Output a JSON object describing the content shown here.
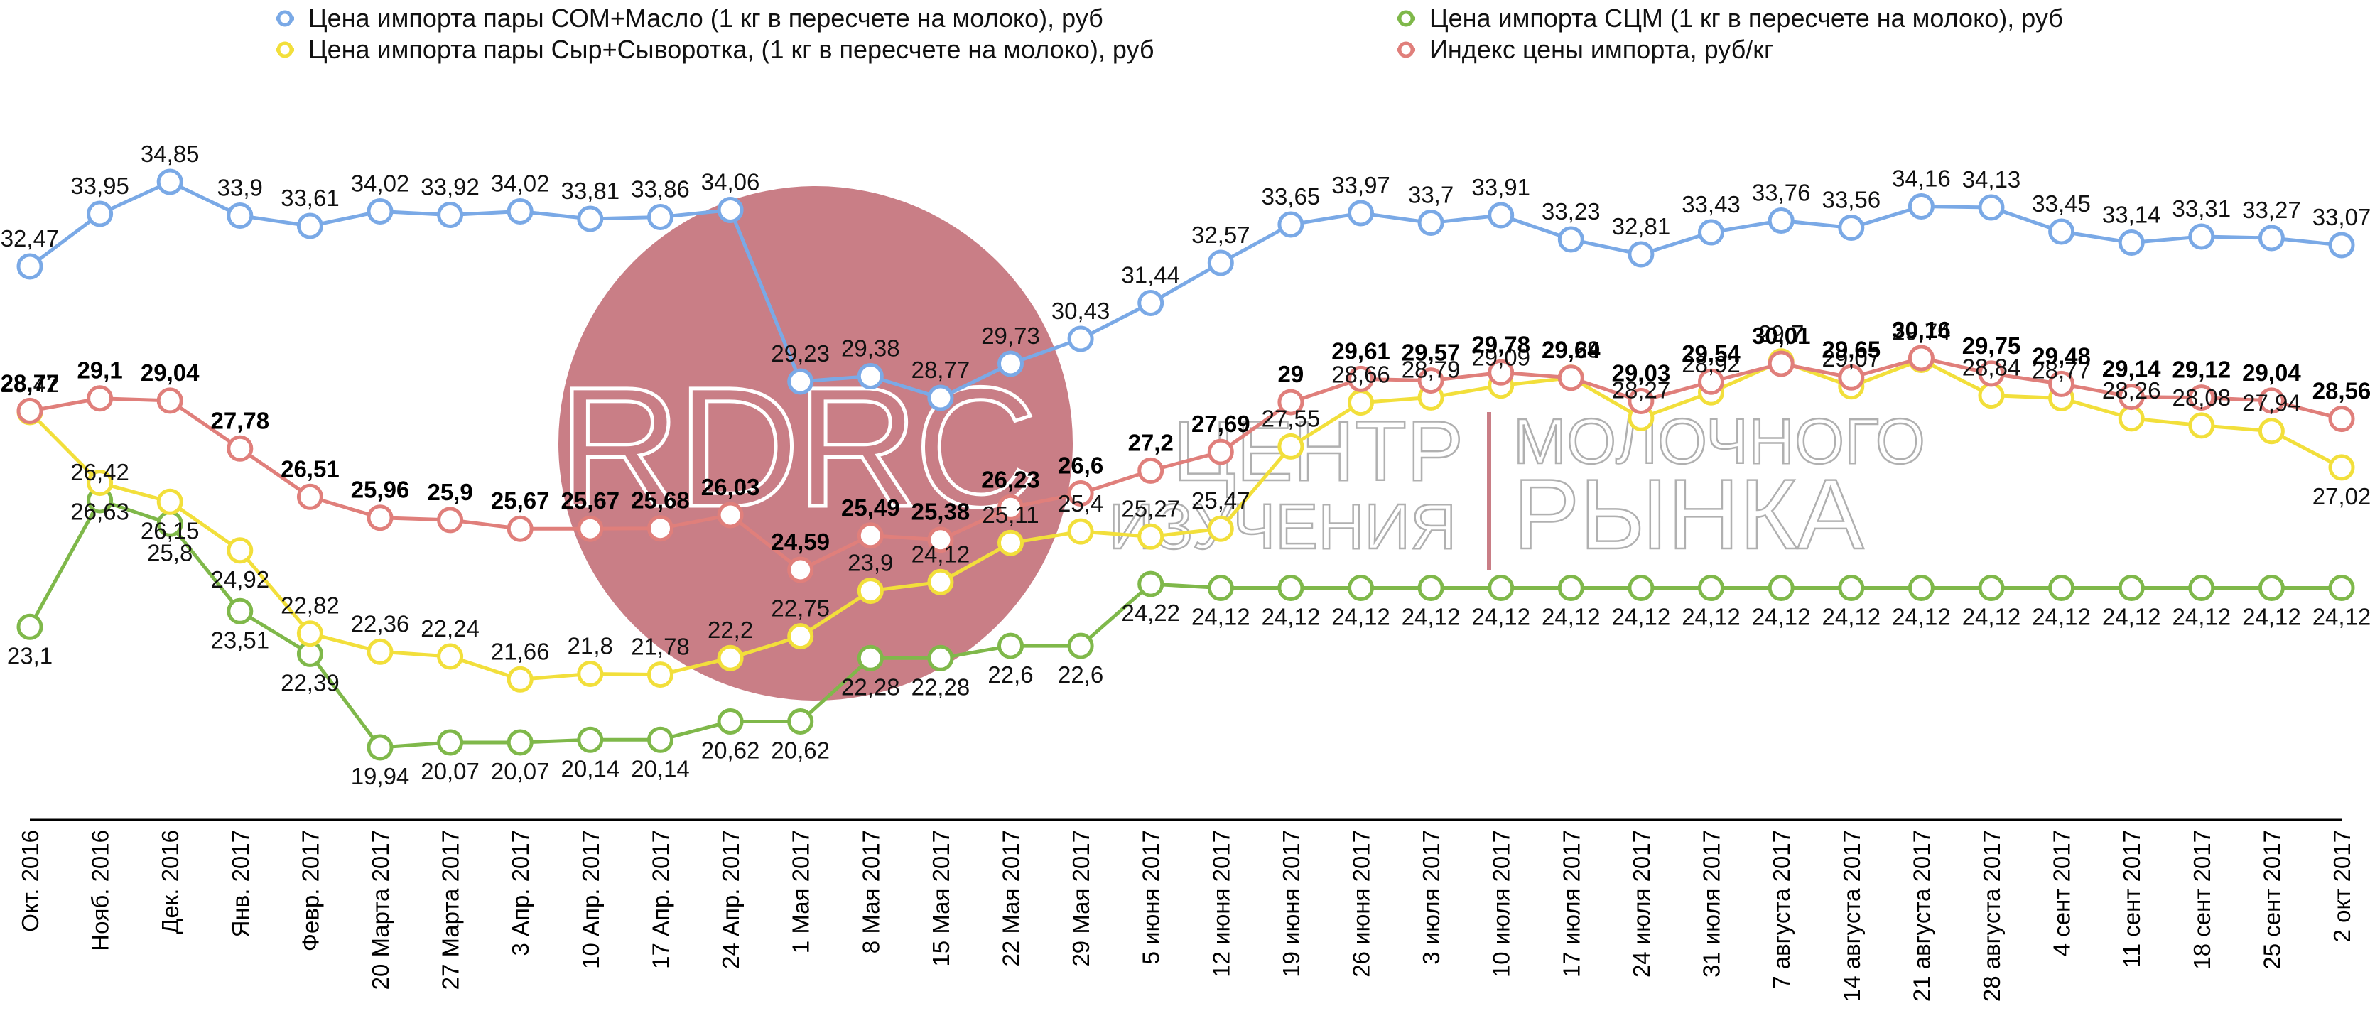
{
  "colors": {
    "blue": "#7aa9e6",
    "yellow": "#f2df3b",
    "green": "#7fb84a",
    "red": "#e07f7b",
    "watermark_circle": "#c97e86",
    "watermark_text": "#b0b0b0",
    "watermark_bar": "#c97e86"
  },
  "watermark": {
    "logo_text": "RDRC",
    "line1a": "ЦЕНТР",
    "line1b": "МОЛОЧНОГО",
    "line2a": "ИЗУЧЕНИЯ",
    "line2b": "РЫНКА"
  },
  "chart_data": {
    "type": "line",
    "categories": [
      "Окт. 2016",
      "Нояб. 2016",
      "Дек. 2016",
      "Янв. 2017",
      "Февр. 2017",
      "20 Марта 2017",
      "27 Марта 2017",
      "3 Апр. 2017",
      "10 Апр. 2017",
      "17 Апр. 2017",
      "24 Апр. 2017",
      "1 Мая 2017",
      "8 Мая 2017",
      "15 Мая 2017",
      "22 Мая 2017",
      "29 Мая 2017",
      "5 июня 2017",
      "12 июня 2017",
      "19 июня 2017",
      "26 июня 2017",
      "3 июля 2017",
      "10 июля 2017",
      "17 июля 2017",
      "24 июля 2017",
      "31 июля 2017",
      "7 августа 2017",
      "14 августа 2017",
      "21 августа 2017",
      "28 августа 2017",
      "4 сент 2017",
      "11 сент 2017",
      "18 сент 2017",
      "25 сент 2017",
      "2 окт 2017"
    ],
    "legend_placement": "top",
    "grid": false,
    "series": [
      {
        "name": "Цена импорта пары СОМ+Масло (1 кг в пересчете на молоко), руб",
        "color": "blue",
        "values": [
          32.47,
          33.95,
          34.85,
          33.9,
          33.61,
          34.02,
          33.92,
          34.02,
          33.81,
          33.86,
          34.06,
          29.23,
          29.38,
          28.77,
          29.73,
          30.43,
          31.44,
          32.57,
          33.65,
          33.97,
          33.7,
          33.91,
          33.23,
          32.81,
          33.43,
          33.76,
          33.56,
          34.16,
          34.13,
          33.45,
          33.14,
          33.31,
          33.27,
          33.07
        ],
        "labels": [
          "32,47",
          "33,95",
          "34,85",
          "33,9",
          "33,61",
          "34,02",
          "33,92",
          "34,02",
          "33,81",
          "33,86",
          "34,06",
          "29,23",
          "29,38",
          "28,77",
          "29,73",
          "30,43",
          "31,44",
          "32,57",
          "33,65",
          "33,97",
          "33,7",
          "33,91",
          "33,23",
          "32,81",
          "33,43",
          "33,76",
          "33,56",
          "34,16",
          "34,13",
          "33,45",
          "33,14",
          "33,31",
          "33,27",
          "33,07"
        ]
      },
      {
        "name": "Цена импорта пары Сыр+Сыворотка, (1 кг в пересчете на молоко), руб",
        "color": "yellow",
        "values": [
          28.42,
          26.63,
          26.15,
          24.92,
          22.82,
          22.36,
          22.24,
          21.66,
          21.8,
          21.78,
          22.2,
          22.75,
          23.9,
          24.12,
          25.11,
          25.4,
          25.27,
          25.47,
          27.55,
          28.66,
          28.79,
          29.09,
          29.29,
          28.27,
          28.92,
          29.7,
          29.07,
          29.74,
          28.84,
          28.77,
          28.26,
          28.08,
          27.94,
          27.02
        ],
        "labels": [
          "28,42",
          "26,63",
          "26,15",
          "24,92",
          "22,82",
          "22,36",
          "22,24",
          "21,66",
          "21,8",
          "21,78",
          "22,2",
          "22,75",
          "23,9",
          "24,12",
          "25,11",
          "25,4",
          "25,27",
          "25,47",
          "27,55",
          "28,66",
          "28,79",
          "29,09",
          "29,29",
          "28,27",
          "28,92",
          "29,7",
          "29,07",
          "29,74",
          "28,84",
          "28,77",
          "28,26",
          "28,08",
          "27,94",
          "27,02"
        ]
      },
      {
        "name": "Цена импорта СЦМ (1 кг в пересчете на молоко), руб",
        "color": "green",
        "values": [
          23.1,
          26.42,
          25.8,
          23.51,
          22.39,
          19.94,
          20.07,
          20.07,
          20.14,
          20.14,
          20.62,
          20.62,
          22.28,
          22.28,
          22.6,
          22.6,
          24.22,
          24.12,
          24.12,
          24.12,
          24.12,
          24.12,
          24.12,
          24.12,
          24.12,
          24.12,
          24.12,
          24.12,
          24.12,
          24.12,
          24.12,
          24.12,
          24.12,
          24.12
        ],
        "labels": [
          "23,1",
          "26,42",
          "25,8",
          "23,51",
          "22,39",
          "19,94",
          "20,07",
          "20,07",
          "20,14",
          "20,14",
          "20,62",
          "20,62",
          "22,28",
          "22,28",
          "22,6",
          "22,6",
          "24,22",
          "24,12",
          "24,12",
          "24,12",
          "24,12",
          "24,12",
          "24,12",
          "24,12",
          "24,12",
          "24,12",
          "24,12",
          "24,12",
          "24,12",
          "24,12",
          "24,12",
          "24,12",
          "24,12",
          "24,12"
        ]
      },
      {
        "name": "Индекс цены импорта, руб/кг",
        "color": "red",
        "values": [
          28.77,
          29.1,
          29.04,
          27.78,
          26.51,
          25.96,
          25.9,
          25.67,
          25.67,
          25.68,
          26.03,
          24.59,
          25.49,
          25.38,
          26.23,
          26.6,
          27.2,
          27.69,
          29,
          29.61,
          29.57,
          29.78,
          29.64,
          29.03,
          29.54,
          30.01,
          29.65,
          30.16,
          29.75,
          29.48,
          29.14,
          29.12,
          29.04,
          28.56
        ],
        "labels": [
          "28,77",
          "29,1",
          "29,04",
          "27,78",
          "26,51",
          "25,96",
          "25,9",
          "25,67",
          "25,67",
          "25,68",
          "26,03",
          "24,59",
          "25,49",
          "25,38",
          "26,23",
          "26,6",
          "27,2",
          "27,69",
          "29",
          "29,61",
          "29,57",
          "29,78",
          "29,64",
          "29,03",
          "29,54",
          "30,01",
          "29,65",
          "30,16",
          "29,75",
          "29,48",
          "29,14",
          "29,12",
          "29,04",
          "28,56"
        ]
      }
    ]
  }
}
